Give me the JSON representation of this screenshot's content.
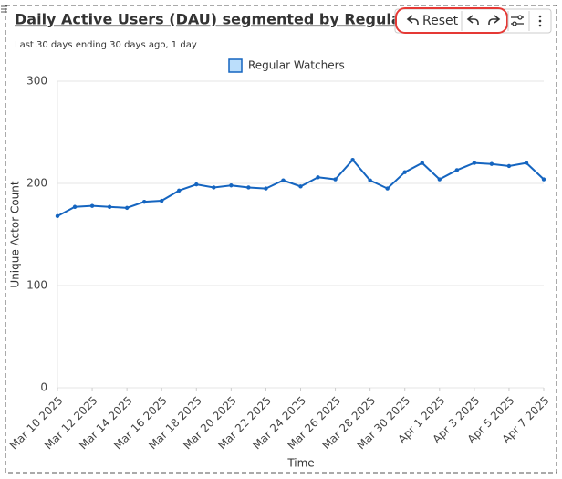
{
  "chart_data": {
    "type": "line",
    "title": "Daily Active Users (DAU) segmented by Regular...",
    "subtitle": "Last 30 days ending 30 days ago, 1 day",
    "x_label": "Time",
    "y_label": "Unique Actor Count",
    "categories": [
      "Mar 10 2025",
      null,
      "Mar 12 2025",
      null,
      "Mar 14 2025",
      null,
      "Mar 16 2025",
      null,
      "Mar 18 2025",
      null,
      "Mar 20 2025",
      null,
      "Mar 22 2025",
      null,
      "Mar 24 2025",
      null,
      "Mar 26 2025",
      null,
      "Mar 28 2025",
      null,
      "Mar 30 2025",
      null,
      "Apr 1 2025",
      null,
      "Apr 3 2025",
      null,
      "Apr 5 2025",
      null,
      "Apr 7 2025"
    ],
    "series": [
      {
        "name": "Regular Watchers",
        "color": "#1565c0",
        "values": [
          168,
          177,
          178,
          177,
          176,
          182,
          183,
          193,
          199,
          196,
          198,
          196,
          195,
          203,
          197,
          206,
          204,
          223,
          203,
          195,
          211,
          220,
          204,
          213,
          220,
          219,
          217,
          220,
          204
        ]
      }
    ],
    "ylim": [
      0,
      300
    ],
    "yticks": [
      0,
      100,
      200,
      300
    ],
    "grid": true
  },
  "toolbar": {
    "reset": "Reset"
  }
}
